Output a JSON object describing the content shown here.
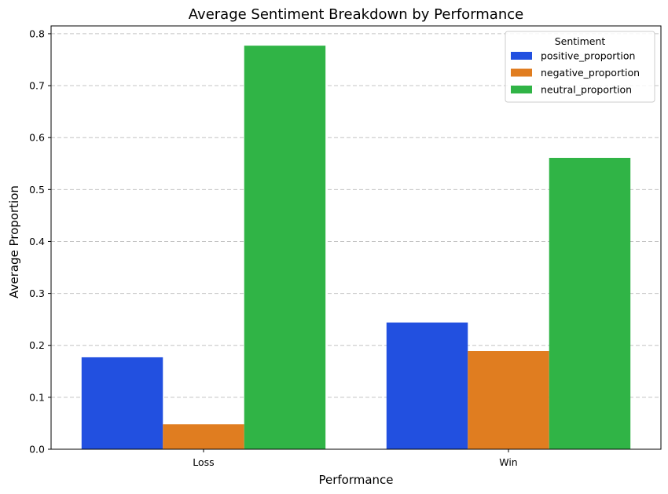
{
  "chart_data": {
    "type": "bar",
    "title": "Average Sentiment Breakdown by Performance",
    "xlabel": "Performance",
    "ylabel": "Average Proportion",
    "categories": [
      "Loss",
      "Win"
    ],
    "series": [
      {
        "name": "positive_proportion",
        "color": "#2250e0",
        "values": [
          0.177,
          0.244
        ]
      },
      {
        "name": "negative_proportion",
        "color": "#e07d20",
        "values": [
          0.048,
          0.189
        ]
      },
      {
        "name": "neutral_proportion",
        "color": "#30b446",
        "values": [
          0.777,
          0.561
        ]
      }
    ],
    "ylim": [
      0,
      0.815
    ],
    "yticks": [
      0.0,
      0.1,
      0.2,
      0.3,
      0.4,
      0.5,
      0.6,
      0.7,
      0.8
    ],
    "ytick_labels": [
      "0.0",
      "0.1",
      "0.2",
      "0.3",
      "0.4",
      "0.5",
      "0.6",
      "0.7",
      "0.8"
    ],
    "grid": "y-dashed",
    "legend": {
      "title": "Sentiment",
      "placement": "top-right"
    }
  }
}
